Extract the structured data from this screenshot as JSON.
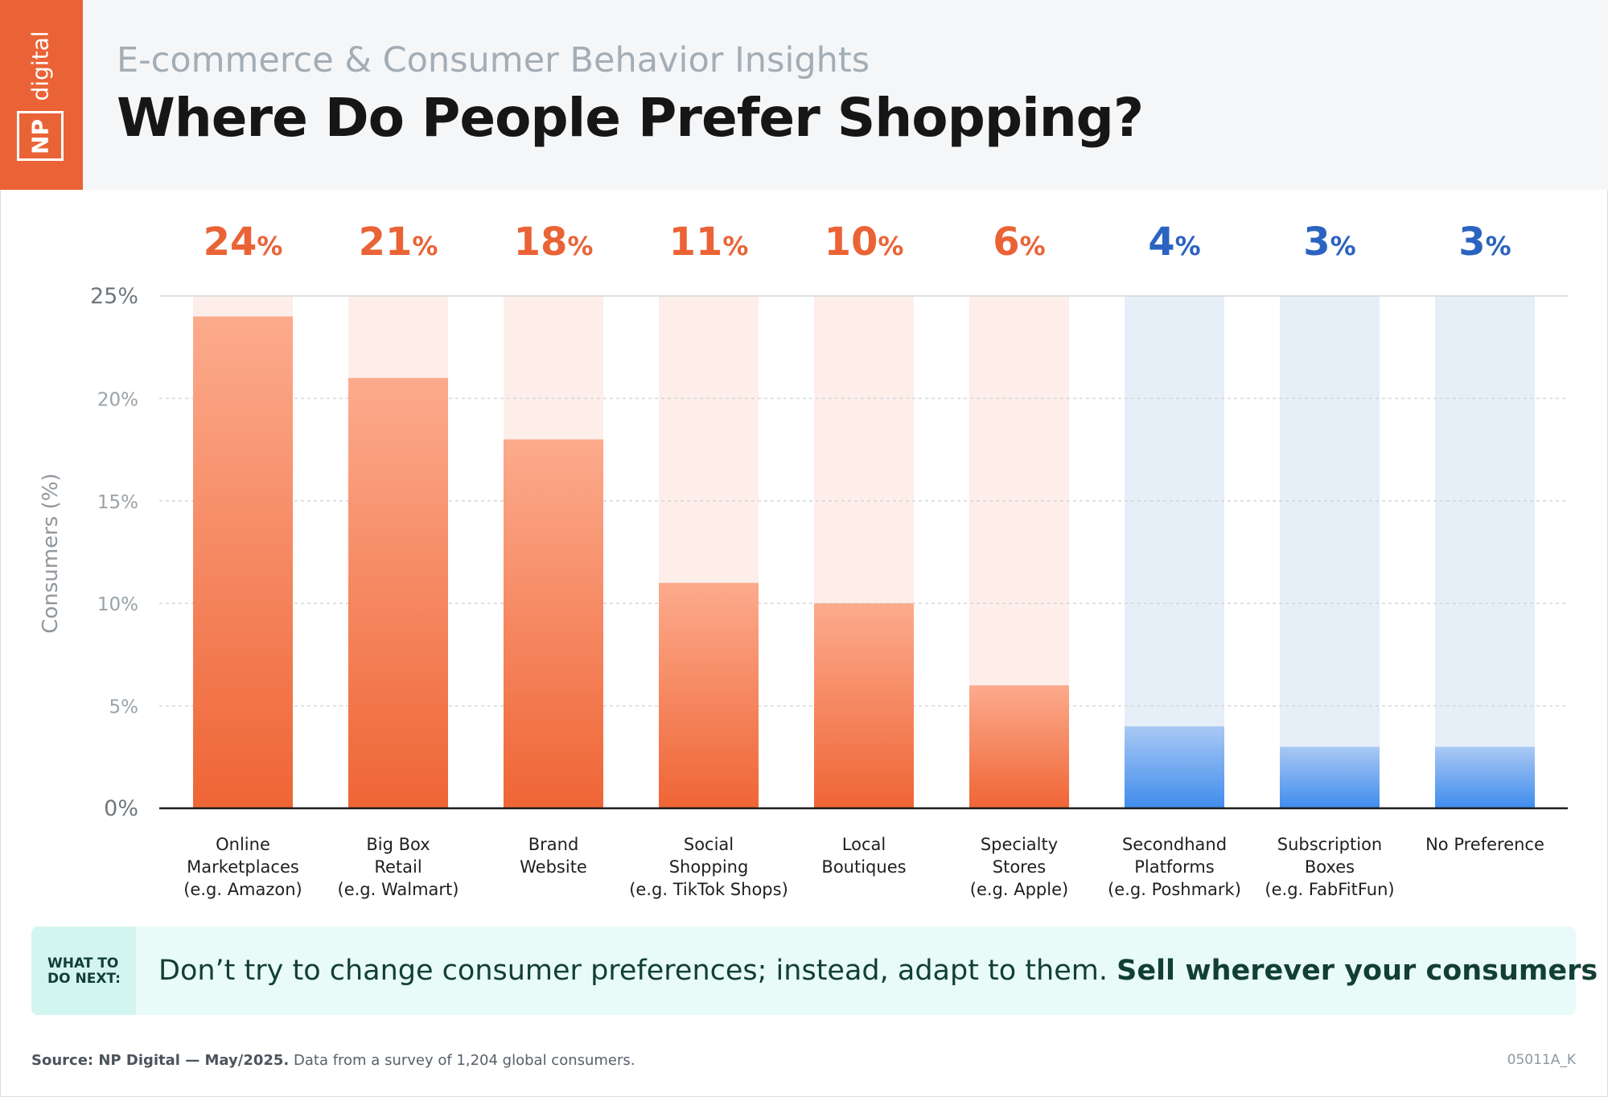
{
  "header": {
    "subtitle": "E-commerce & Consumer Behavior Insights",
    "title": "Where Do People Prefer Shopping?",
    "logo_np": "NP",
    "logo_digital": "digital"
  },
  "chart_data": {
    "type": "bar",
    "title": "Where Do People Prefer Shopping?",
    "ylabel": "Consumers (%)",
    "ylim": [
      0,
      25
    ],
    "yticks": [
      0,
      5,
      10,
      15,
      20,
      25
    ],
    "ytick_labels": [
      "0%",
      "5%",
      "10%",
      "15%",
      "20%",
      "25%"
    ],
    "grid": true,
    "categories": [
      [
        "Online",
        "Marketplaces",
        "(e.g. Amazon)"
      ],
      [
        "Big Box",
        "Retail",
        "(e.g. Walmart)"
      ],
      [
        "Brand",
        "Website"
      ],
      [
        "Social",
        "Shopping",
        "(e.g. TikTok Shops)"
      ],
      [
        "Local",
        "Boutiques"
      ],
      [
        "Specialty",
        "Stores",
        "(e.g. Apple)"
      ],
      [
        "Secondhand",
        "Platforms",
        "(e.g. Poshmark)"
      ],
      [
        "Subscription",
        "Boxes",
        "(e.g. FabFitFun)"
      ],
      [
        "No Preference"
      ]
    ],
    "values": [
      24,
      21,
      18,
      11,
      10,
      6,
      4,
      3,
      3
    ],
    "value_labels": [
      "24",
      "21",
      "18",
      "11",
      "10",
      "6",
      "4",
      "3",
      "3"
    ],
    "percent_sign": "%",
    "colors": {
      "orange_top": "#fcab8d",
      "orange_bottom": "#ef6535",
      "orange_track": "#fdeeea",
      "orange_label": "#ea6336",
      "blue_top": "#a9c9f4",
      "blue_bottom": "#3f8ced",
      "blue_track": "#e6eef8",
      "blue_label": "#2b63c1"
    },
    "highlight_group": [
      "orange",
      "orange",
      "orange",
      "orange",
      "orange",
      "orange",
      "blue",
      "blue",
      "blue"
    ]
  },
  "callout": {
    "tag": "WHAT TO DO NEXT:",
    "message": "Don’t try to change consumer preferences; instead, adapt to them.",
    "emphasis": "Sell wherever your consumers are."
  },
  "footer": {
    "source_label": "Source: NP Digital — May/2025.",
    "source_text": "Data from a survey of 1,204 global consumers.",
    "code": "05011A_K"
  }
}
